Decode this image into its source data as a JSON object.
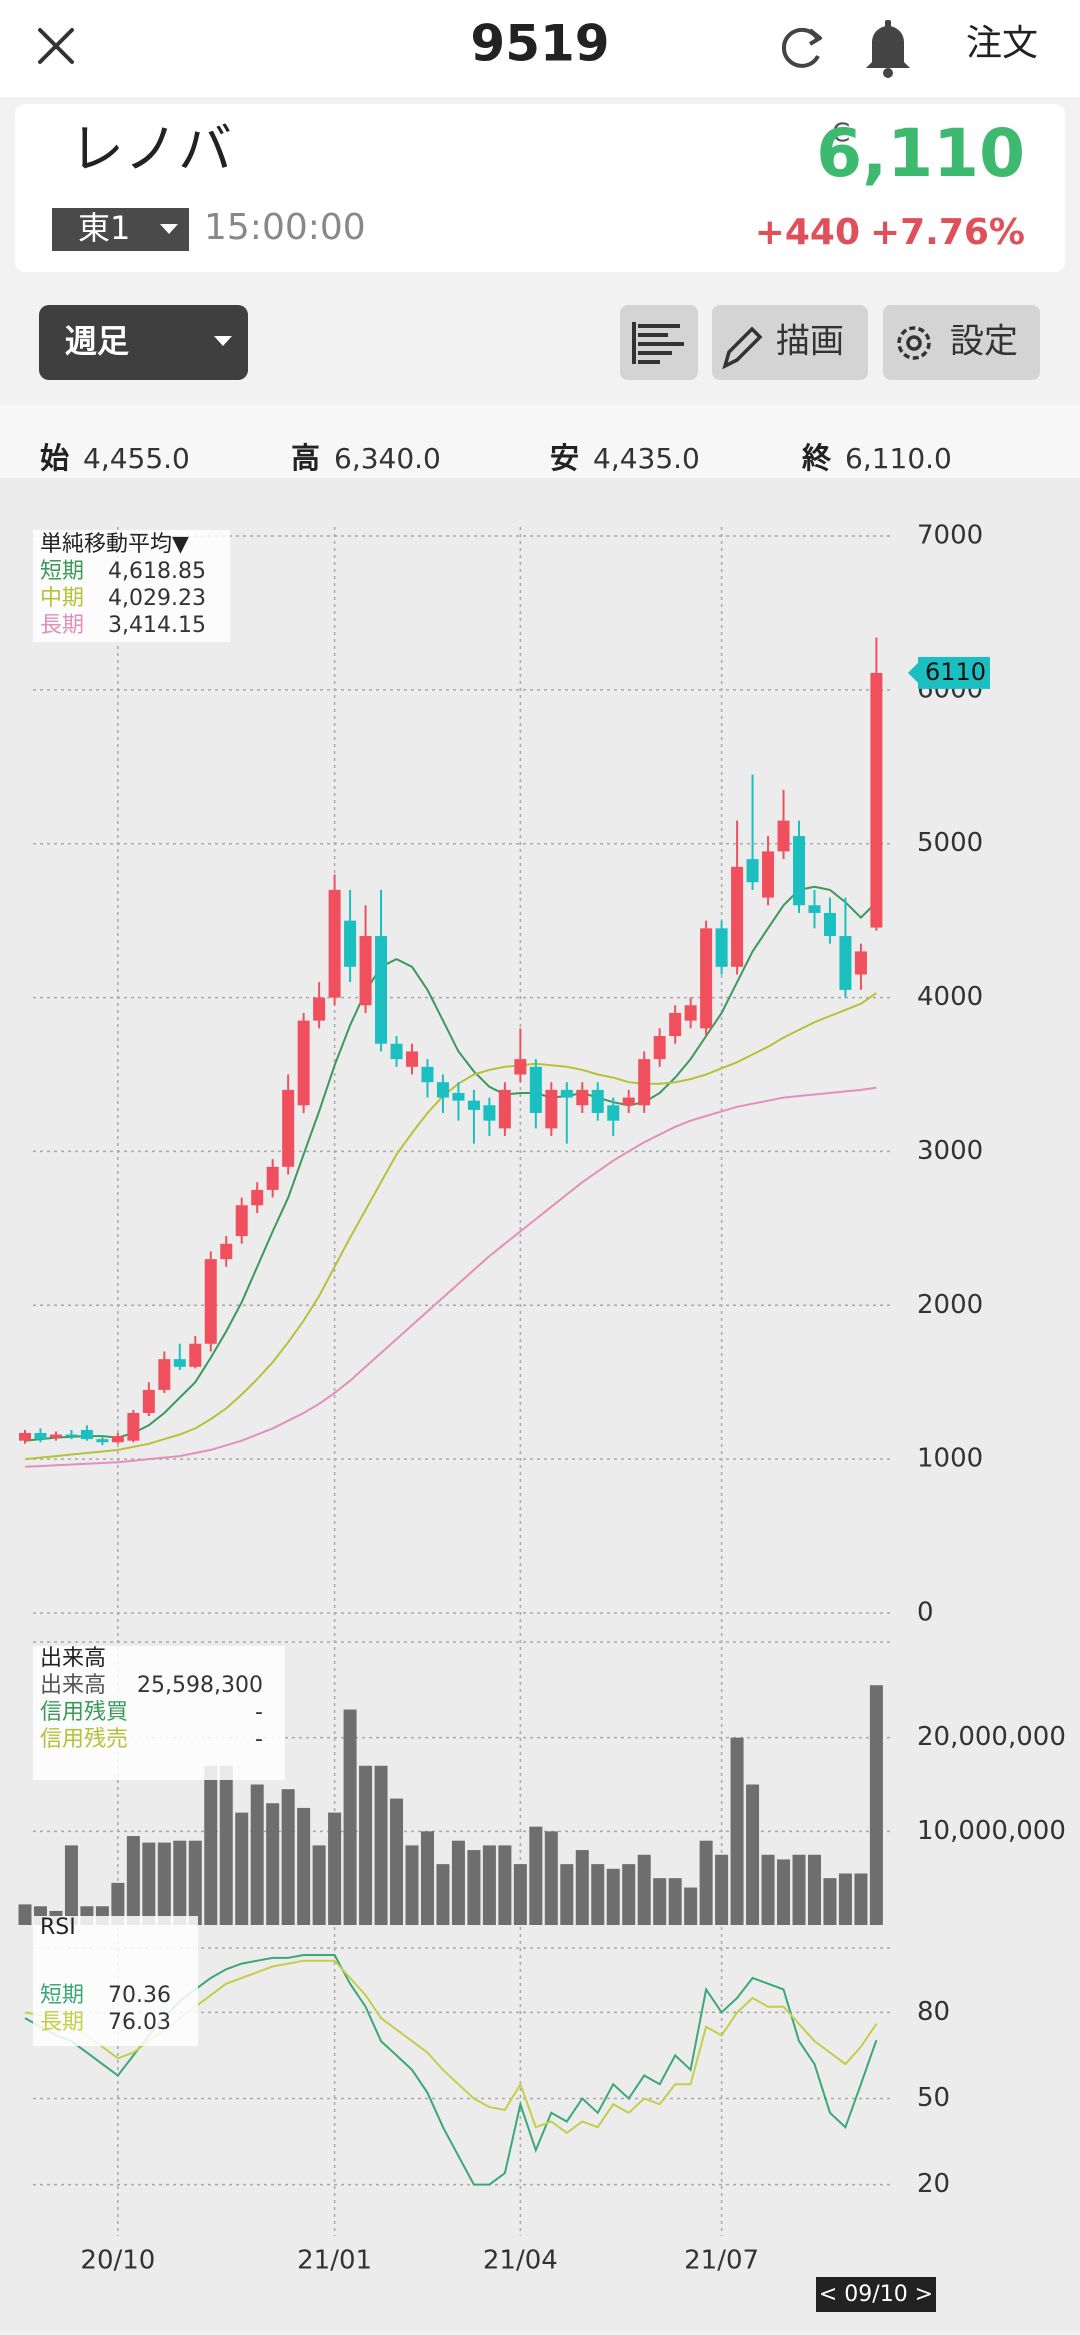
{
  "header": {
    "title": "9519",
    "order_button": "注文"
  },
  "quote": {
    "name": "レノバ",
    "market": "東1",
    "time": "15:00:00",
    "price_flag": "C",
    "price": "6,110",
    "change": "+440",
    "change_percent": "+7.76%"
  },
  "toolbar": {
    "period": "週足",
    "draw": "描画",
    "settings": "設定"
  },
  "ohlc": [
    {
      "label": "始",
      "value": "4,455.0"
    },
    {
      "label": "高",
      "value": "6,340.0"
    },
    {
      "label": "安",
      "value": "4,435.0"
    },
    {
      "label": "終",
      "value": "6,110.0"
    }
  ],
  "chart_data": [
    {
      "type": "candlestick",
      "categories": [
        null,
        null,
        null,
        null,
        null,
        null,
        "20/10",
        null,
        null,
        null,
        null,
        null,
        null,
        null,
        null,
        null,
        null,
        null,
        null,
        null,
        "21/01",
        null,
        null,
        null,
        null,
        null,
        null,
        null,
        null,
        null,
        null,
        null,
        "21/04",
        null,
        null,
        null,
        null,
        null,
        null,
        null,
        null,
        null,
        null,
        null,
        null,
        "21/07",
        null,
        null,
        null,
        null,
        null,
        null,
        null,
        null,
        null,
        null
      ],
      "open": [
        1120,
        1170,
        1140,
        1160,
        1190,
        1130,
        1110,
        1120,
        1300,
        1450,
        1650,
        1600,
        1750,
        2300,
        2450,
        2650,
        2750,
        2900,
        3300,
        3850,
        4000,
        4500,
        3950,
        4400,
        3700,
        3550,
        3550,
        3450,
        3380,
        3330,
        3300,
        3150,
        3500,
        3550,
        3150,
        3400,
        3300,
        3400,
        3300,
        3300,
        3300,
        3600,
        3750,
        3850,
        3800,
        4450,
        4200,
        4900,
        4650,
        4950,
        5050,
        4600,
        4550,
        4400,
        4150,
        4455
      ],
      "high": [
        1190,
        1200,
        1180,
        1190,
        1220,
        1150,
        1170,
        1320,
        1500,
        1700,
        1750,
        1800,
        2350,
        2450,
        2700,
        2800,
        2950,
        3500,
        3900,
        4100,
        4800,
        4700,
        4600,
        4700,
        3750,
        3700,
        3600,
        3500,
        3450,
        3400,
        3350,
        3450,
        3800,
        3600,
        3450,
        3450,
        3450,
        3450,
        3350,
        3400,
        3650,
        3800,
        3950,
        4000,
        4500,
        4500,
        5150,
        5450,
        5050,
        5350,
        5150,
        4700,
        4650,
        4650,
        4350,
        6340
      ],
      "low": [
        1100,
        1110,
        1120,
        1130,
        1120,
        1090,
        1100,
        1110,
        1280,
        1430,
        1580,
        1590,
        1700,
        2250,
        2400,
        2600,
        2700,
        2850,
        3250,
        3800,
        3950,
        4100,
        3900,
        3650,
        3550,
        3500,
        3350,
        3250,
        3200,
        3050,
        3100,
        3100,
        3450,
        3150,
        3100,
        3050,
        3250,
        3200,
        3100,
        3250,
        3250,
        3550,
        3700,
        3800,
        3750,
        4150,
        4150,
        4700,
        4600,
        4900,
        4550,
        4450,
        4350,
        4000,
        4050,
        4435
      ],
      "close": [
        1170,
        1130,
        1160,
        1150,
        1130,
        1110,
        1150,
        1300,
        1450,
        1650,
        1600,
        1750,
        2300,
        2400,
        2650,
        2750,
        2900,
        3400,
        3850,
        4000,
        4700,
        4200,
        4400,
        3700,
        3600,
        3650,
        3450,
        3350,
        3330,
        3270,
        3200,
        3400,
        3600,
        3250,
        3400,
        3350,
        3400,
        3250,
        3200,
        3350,
        3600,
        3750,
        3900,
        3950,
        4450,
        4200,
        4850,
        4750,
        4950,
        5150,
        4600,
        4550,
        4400,
        4050,
        4300,
        6110
      ],
      "up_color": "#f0505e",
      "down_color": "#1cbfc0",
      "last_price_label": 6110,
      "last_price_color": "#1cbfc0",
      "legend_title": "単純移動平均▼",
      "series": [
        {
          "name": "短期",
          "color": "#3a9a5a",
          "last_value_label": "4,618.85",
          "values": [
            1120,
            1130,
            1140,
            1145,
            1150,
            1150,
            1140,
            1170,
            1220,
            1300,
            1400,
            1500,
            1660,
            1830,
            2020,
            2250,
            2480,
            2700,
            2980,
            3260,
            3560,
            3820,
            4040,
            4200,
            4250,
            4200,
            4050,
            3850,
            3650,
            3520,
            3420,
            3370,
            3380,
            3380,
            3350,
            3360,
            3380,
            3350,
            3320,
            3300,
            3320,
            3380,
            3480,
            3600,
            3750,
            3900,
            4100,
            4300,
            4450,
            4600,
            4700,
            4720,
            4700,
            4620,
            4520,
            4618.85
          ]
        },
        {
          "name": "中期",
          "color": "#b5c23a",
          "last_value_label": "4,029.23",
          "values": [
            1000,
            1010,
            1020,
            1030,
            1040,
            1050,
            1060,
            1080,
            1100,
            1130,
            1160,
            1200,
            1260,
            1330,
            1420,
            1520,
            1630,
            1760,
            1900,
            2060,
            2250,
            2440,
            2620,
            2800,
            2980,
            3120,
            3250,
            3360,
            3440,
            3500,
            3530,
            3550,
            3560,
            3570,
            3560,
            3550,
            3530,
            3500,
            3480,
            3450,
            3440,
            3440,
            3450,
            3470,
            3500,
            3540,
            3580,
            3630,
            3680,
            3740,
            3790,
            3840,
            3880,
            3920,
            3960,
            4029.23
          ]
        },
        {
          "name": "長期",
          "color": "#e48fb8",
          "last_value_label": "3,414.15",
          "values": [
            950,
            955,
            960,
            965,
            970,
            975,
            980,
            990,
            1000,
            1010,
            1020,
            1040,
            1060,
            1090,
            1120,
            1160,
            1200,
            1250,
            1300,
            1360,
            1430,
            1510,
            1600,
            1690,
            1780,
            1870,
            1960,
            2050,
            2140,
            2230,
            2320,
            2400,
            2480,
            2560,
            2640,
            2720,
            2800,
            2870,
            2940,
            3000,
            3060,
            3110,
            3160,
            3200,
            3230,
            3260,
            3290,
            3310,
            3330,
            3350,
            3360,
            3370,
            3380,
            3390,
            3400,
            3414.15
          ]
        }
      ],
      "ylim": [
        0,
        7000
      ],
      "yticks": [
        0,
        1000,
        2000,
        3000,
        4000,
        5000,
        6000,
        7000
      ],
      "grid": true
    },
    {
      "type": "bar",
      "title": "出来高",
      "color": "#6e6e6e",
      "values": [
        2200000,
        2000000,
        1500000,
        8500000,
        2000000,
        2000000,
        4500000,
        9500000,
        8800000,
        8800000,
        9000000,
        9000000,
        17000000,
        17000000,
        12000000,
        15000000,
        13000000,
        14500000,
        12500000,
        8500000,
        12000000,
        23000000,
        17000000,
        17000000,
        13500000,
        8500000,
        10000000,
        6500000,
        9000000,
        8000000,
        8500000,
        8500000,
        6500000,
        10500000,
        10000000,
        6500000,
        8000000,
        6500000,
        6000000,
        6500000,
        7500000,
        5000000,
        5000000,
        4000000,
        9000000,
        7500000,
        20000000,
        15000000,
        7500000,
        7000000,
        7500000,
        7500000,
        5000000,
        5500000,
        5500000,
        25598300
      ],
      "legend_rows": [
        {
          "name": "出来高",
          "value": "25,598,300",
          "color": "#555555"
        },
        {
          "name": "信用残買",
          "value": "-",
          "color": "#3a9a5a"
        },
        {
          "name": "信用残売",
          "value": "-",
          "color": "#b5c23a"
        }
      ],
      "ylim": [
        0,
        30000000
      ],
      "yticks": [
        {
          "value": 10000000,
          "label": "10,000,000"
        },
        {
          "value": 20000000,
          "label": "20,000,000"
        }
      ],
      "grid": true
    },
    {
      "type": "line",
      "title": "RSI",
      "series": [
        {
          "name": "短期",
          "color": "#3aa878",
          "values": [
            78,
            75,
            72,
            70,
            66,
            62,
            58,
            65,
            72,
            78,
            84,
            88,
            92,
            95,
            97,
            98,
            99,
            99,
            100,
            100,
            100,
            90,
            82,
            70,
            65,
            60,
            52,
            40,
            30,
            20,
            20,
            24,
            48,
            32,
            45,
            42,
            50,
            45,
            55,
            50,
            58,
            55,
            65,
            60,
            88,
            80,
            85,
            92,
            90,
            88,
            70,
            62,
            45,
            40,
            55,
            70.36
          ]
        },
        {
          "name": "長期",
          "color": "#c2cf4a",
          "values": [
            80,
            79,
            77,
            75,
            72,
            68,
            64,
            66,
            70,
            74,
            78,
            82,
            86,
            90,
            92,
            94,
            96,
            97,
            98,
            98,
            98,
            92,
            86,
            78,
            74,
            70,
            66,
            60,
            55,
            50,
            47,
            46,
            55,
            40,
            42,
            38,
            42,
            40,
            48,
            45,
            50,
            48,
            55,
            55,
            75,
            72,
            80,
            85,
            82,
            82,
            76,
            70,
            66,
            62,
            68,
            76.03
          ]
        }
      ],
      "ylim": [
        0,
        100
      ],
      "yticks": [
        20,
        50,
        80
      ],
      "grid": true
    }
  ],
  "date_indicator": "< 09/10 >"
}
